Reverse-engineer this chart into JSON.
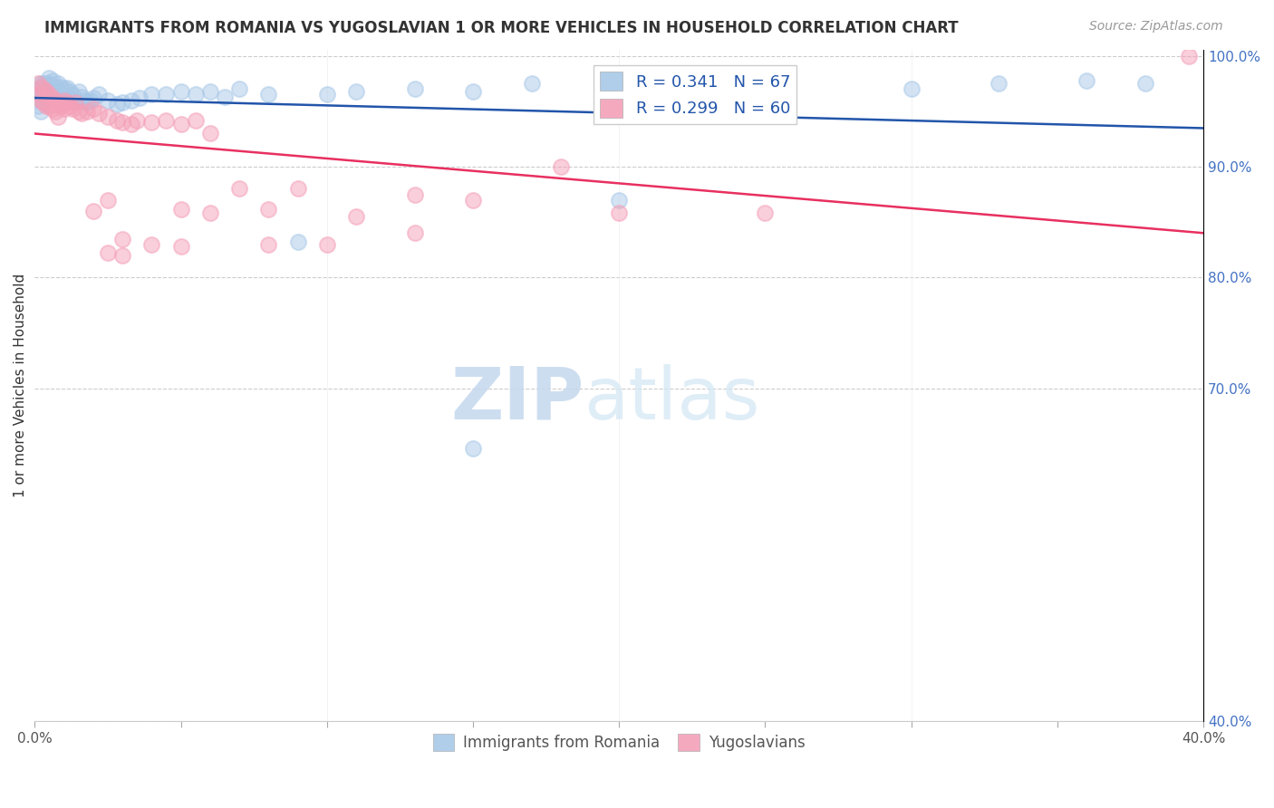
{
  "title": "IMMIGRANTS FROM ROMANIA VS YUGOSLAVIAN 1 OR MORE VEHICLES IN HOUSEHOLD CORRELATION CHART",
  "source": "Source: ZipAtlas.com",
  "ylabel": "1 or more Vehicles in Household",
  "xmin": 0.0,
  "xmax": 0.4,
  "ymin": 0.4,
  "ymax": 1.005,
  "R_romania": 0.341,
  "N_romania": 67,
  "R_yugoslavian": 0.299,
  "N_yugoslavian": 60,
  "color_romania": "#a8c8e8",
  "color_yugoslavian": "#f4a0b8",
  "color_trendline_romania": "#2255aa",
  "color_trendline_yugoslavian": "#e83060",
  "romania_x": [
    0.001,
    0.001,
    0.001,
    0.002,
    0.002,
    0.002,
    0.002,
    0.003,
    0.003,
    0.003,
    0.003,
    0.004,
    0.004,
    0.004,
    0.005,
    0.005,
    0.005,
    0.005,
    0.006,
    0.006,
    0.006,
    0.007,
    0.007,
    0.008,
    0.008,
    0.009,
    0.009,
    0.01,
    0.01,
    0.011,
    0.011,
    0.012,
    0.013,
    0.014,
    0.015,
    0.016,
    0.017,
    0.018,
    0.019,
    0.02,
    0.022,
    0.025,
    0.028,
    0.03,
    0.033,
    0.036,
    0.04,
    0.045,
    0.05,
    0.055,
    0.06,
    0.065,
    0.07,
    0.08,
    0.09,
    0.1,
    0.11,
    0.13,
    0.15,
    0.17,
    0.2,
    0.25,
    0.3,
    0.33,
    0.36,
    0.38,
    0.15
  ],
  "romania_y": [
    0.97,
    0.965,
    0.955,
    0.975,
    0.97,
    0.96,
    0.95,
    0.975,
    0.97,
    0.965,
    0.958,
    0.975,
    0.968,
    0.96,
    0.98,
    0.975,
    0.968,
    0.96,
    0.978,
    0.97,
    0.962,
    0.972,
    0.965,
    0.975,
    0.967,
    0.972,
    0.964,
    0.97,
    0.962,
    0.971,
    0.963,
    0.968,
    0.965,
    0.96,
    0.968,
    0.963,
    0.96,
    0.958,
    0.96,
    0.962,
    0.965,
    0.96,
    0.956,
    0.958,
    0.96,
    0.962,
    0.965,
    0.965,
    0.968,
    0.965,
    0.968,
    0.963,
    0.97,
    0.965,
    0.832,
    0.965,
    0.968,
    0.97,
    0.968,
    0.975,
    0.87,
    0.972,
    0.97,
    0.975,
    0.978,
    0.975,
    0.646
  ],
  "yugoslavian_x": [
    0.001,
    0.001,
    0.002,
    0.002,
    0.003,
    0.003,
    0.004,
    0.004,
    0.005,
    0.005,
    0.006,
    0.006,
    0.007,
    0.007,
    0.008,
    0.008,
    0.009,
    0.01,
    0.01,
    0.011,
    0.012,
    0.013,
    0.014,
    0.015,
    0.016,
    0.018,
    0.02,
    0.022,
    0.025,
    0.028,
    0.03,
    0.033,
    0.035,
    0.04,
    0.045,
    0.05,
    0.055,
    0.06,
    0.07,
    0.08,
    0.09,
    0.11,
    0.13,
    0.15,
    0.18,
    0.2,
    0.25,
    0.02,
    0.025,
    0.03,
    0.04,
    0.05,
    0.06,
    0.08,
    0.1,
    0.13,
    0.025,
    0.03,
    0.05,
    0.395
  ],
  "yugoslavian_y": [
    0.975,
    0.965,
    0.972,
    0.96,
    0.97,
    0.958,
    0.968,
    0.955,
    0.965,
    0.955,
    0.962,
    0.952,
    0.96,
    0.95,
    0.958,
    0.945,
    0.955,
    0.96,
    0.952,
    0.958,
    0.955,
    0.952,
    0.958,
    0.95,
    0.948,
    0.95,
    0.952,
    0.948,
    0.945,
    0.942,
    0.94,
    0.938,
    0.942,
    0.94,
    0.942,
    0.938,
    0.942,
    0.93,
    0.88,
    0.862,
    0.88,
    0.855,
    0.875,
    0.87,
    0.9,
    0.858,
    0.858,
    0.86,
    0.87,
    0.835,
    0.83,
    0.828,
    0.858,
    0.83,
    0.83,
    0.84,
    0.822,
    0.82,
    0.862,
    1.0
  ]
}
